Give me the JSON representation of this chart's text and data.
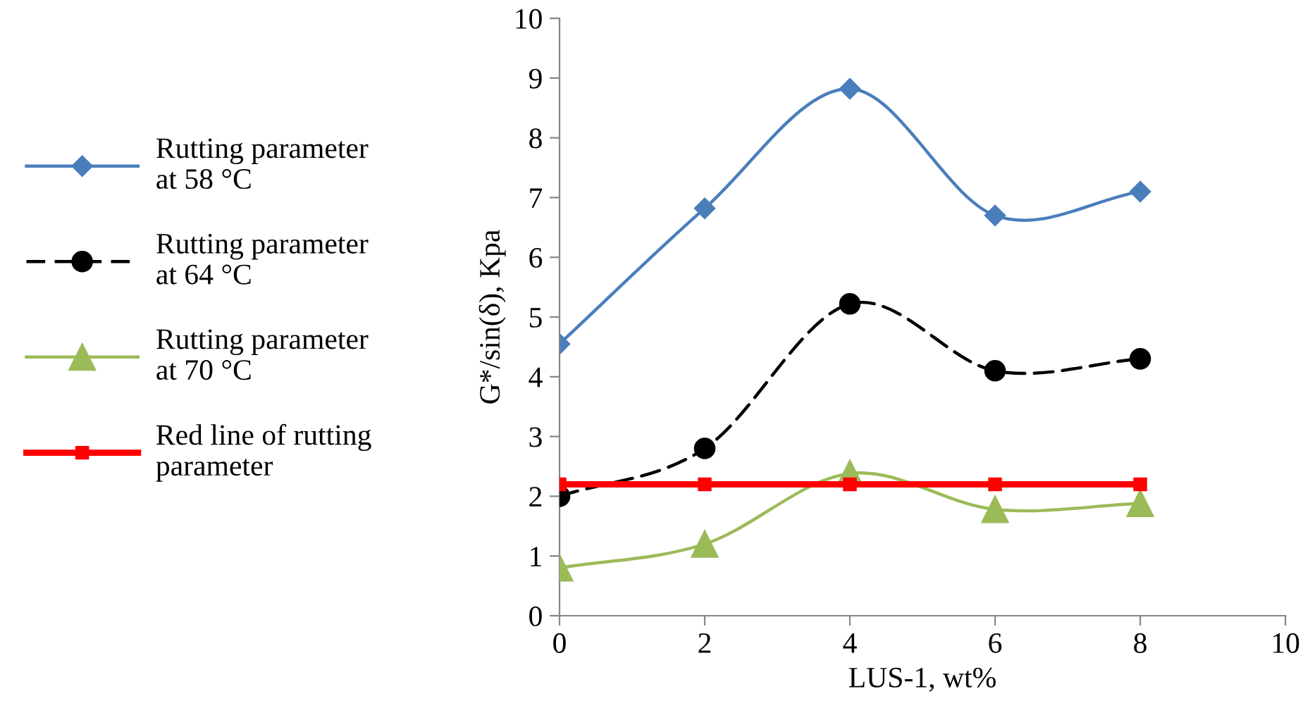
{
  "chart_data": {
    "type": "line",
    "xlabel": "LUS-1, wt%",
    "ylabel": "G*/sin(δ), Kpa",
    "xlim": [
      0,
      10
    ],
    "xticks": [
      0,
      2,
      4,
      6,
      8,
      10
    ],
    "ylim": [
      0,
      10
    ],
    "yticks": [
      0,
      1,
      2,
      3,
      4,
      5,
      6,
      7,
      8,
      9,
      10
    ],
    "grid": false,
    "legend": "left",
    "x": [
      0,
      2,
      4,
      6,
      8
    ],
    "series": [
      {
        "name": "Rutting parameter\nat 58 °C",
        "color": "#4a7ebb",
        "values": [
          4.55,
          6.82,
          8.82,
          6.7,
          7.1
        ],
        "marker": "diamond",
        "line_style": "solid"
      },
      {
        "name": "Rutting parameter\nat 64 °C",
        "color": "#000000",
        "values": [
          2.0,
          2.8,
          5.22,
          4.1,
          4.3
        ],
        "marker": "circle",
        "line_style": "dashed"
      },
      {
        "name": "Rutting parameter\nat 70 °C",
        "color": "#9bbb59",
        "values": [
          0.8,
          1.2,
          2.38,
          1.78,
          1.88
        ],
        "marker": "triangle",
        "line_style": "solid"
      },
      {
        "name": "Red line of rutting\nparameter",
        "color": "#ff0000",
        "values": [
          2.2,
          2.2,
          2.2,
          2.2,
          2.2
        ],
        "marker": "square",
        "line_style": "solid"
      }
    ]
  }
}
